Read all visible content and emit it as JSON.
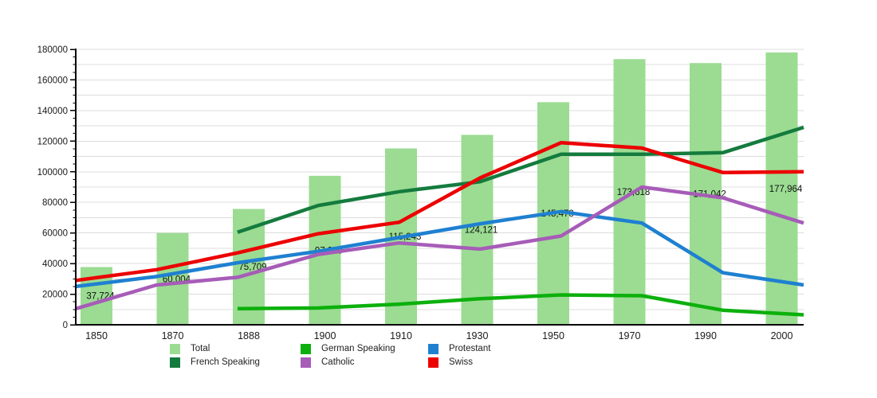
{
  "chart_data": {
    "type": "bar",
    "title": "",
    "xlabel": "",
    "ylabel": "",
    "categories": [
      "1850",
      "1870",
      "1888",
      "1900",
      "1910",
      "1930",
      "1950",
      "1970",
      "1990",
      "2000"
    ],
    "ylim": [
      0,
      180000
    ],
    "ytick_step": 20000,
    "grid_step": 10000,
    "minor_tick_step": 5000,
    "grid_on": true,
    "yticklabels": [
      "0",
      "20000",
      "40000",
      "60000",
      "80000",
      "100000",
      "120000",
      "140000",
      "160000",
      "180000"
    ],
    "bar_series": {
      "name": "Total",
      "color": "#9BDC92",
      "values": [
        37724,
        60004,
        75709,
        97359,
        115243,
        124121,
        145473,
        173618,
        171042,
        177964
      ],
      "labels": [
        "37,724",
        "60,004",
        "75,709",
        "97,359",
        "115,243",
        "124,121",
        "145,473",
        "173,618",
        "171,042",
        "177,964"
      ]
    },
    "line_series": [
      {
        "name": "German Speaking",
        "color": "#0CB00C",
        "values": [
          null,
          null,
          10500,
          11000,
          13500,
          17000,
          19500,
          19000,
          9500,
          6500
        ]
      },
      {
        "name": "Protestant",
        "color": "#1F80D0",
        "values": [
          25000,
          31500,
          40500,
          48000,
          57000,
          66000,
          74000,
          66500,
          34000,
          26000
        ]
      },
      {
        "name": "French Speaking",
        "color": "#147B3E",
        "values": [
          null,
          null,
          60500,
          78000,
          87000,
          93500,
          111500,
          111500,
          112500,
          129000
        ]
      },
      {
        "name": "Catholic",
        "color": "#A75CB8",
        "values": [
          10500,
          26000,
          31000,
          46000,
          53500,
          49500,
          58000,
          90000,
          83000,
          66500
        ]
      },
      {
        "name": "Swiss",
        "color": "#EC0000",
        "values": [
          29000,
          36000,
          47000,
          59500,
          67000,
          96000,
          119000,
          115500,
          99500,
          100000
        ]
      }
    ],
    "legend": {
      "position": "bottom",
      "items": [
        {
          "label": "Total",
          "color": "#9BDC92"
        },
        {
          "label": "German Speaking",
          "color": "#0CB00C"
        },
        {
          "label": "Protestant",
          "color": "#1F80D0"
        },
        {
          "label": "French Speaking",
          "color": "#147B3E"
        },
        {
          "label": "Catholic",
          "color": "#A75CB8"
        },
        {
          "label": "Swiss",
          "color": "#EC0000"
        }
      ]
    },
    "colors": {
      "background": "#FFFFFF",
      "grid": "#DCDCDC",
      "axis": "#000000",
      "text": "#1A1A1A"
    }
  }
}
